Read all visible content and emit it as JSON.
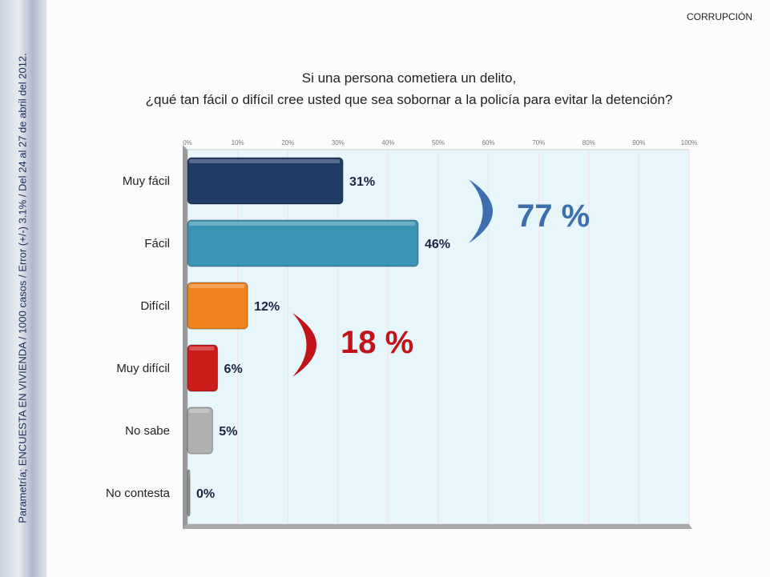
{
  "header": {
    "section": "CORRUPCIÓN",
    "source": "Parametría; ENCUESTA EN VIVIENDA / 1000 casos / Error (+/-) 3.1% / Del 24 al 27 de abril del 2012."
  },
  "chart_data": {
    "type": "bar",
    "orientation": "horizontal",
    "title": [
      "Si una persona cometiera un delito,",
      "¿qué tan fácil o difícil cree usted que sea sobornar a la policía para evitar la detención?"
    ],
    "categories": [
      "Muy fácil",
      "Fácil",
      "Difícil",
      "Muy difícil",
      "No sabe",
      "No contesta"
    ],
    "values": [
      31,
      46,
      12,
      6,
      5,
      0
    ],
    "labels": [
      "31%",
      "46%",
      "12%",
      "6%",
      "5%",
      "0%"
    ],
    "colors": [
      "#1f3b66",
      "#3c94b5",
      "#f0821e",
      "#cc1b1b",
      "#b0b0b0",
      "#9a9a9a"
    ],
    "xlim": [
      0,
      100
    ],
    "ticks": [
      "0%",
      "10%",
      "20%",
      "30%",
      "40%",
      "50%",
      "60%",
      "70%",
      "80%",
      "90%",
      "100%"
    ],
    "annotations": [
      {
        "text": "77 %",
        "color": "#3d6fae",
        "groups": [
          "Muy fácil",
          "Fácil"
        ]
      },
      {
        "text": "18 %",
        "color": "#c0141a",
        "groups": [
          "Difícil",
          "Muy difícil"
        ]
      }
    ],
    "grid": true
  }
}
